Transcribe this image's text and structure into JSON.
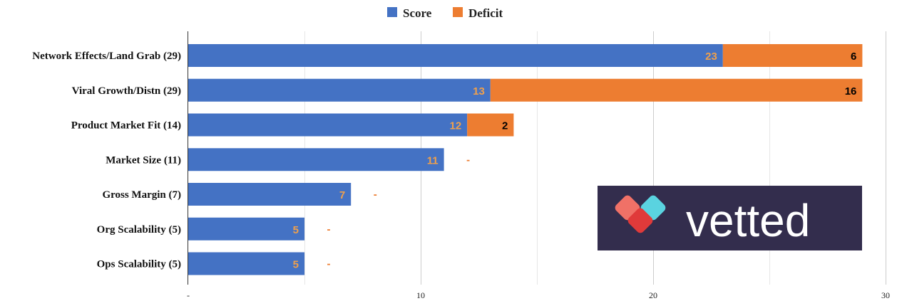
{
  "chart_data": {
    "type": "bar",
    "orientation": "horizontal",
    "stacked": true,
    "categories": [
      "Network Effects/Land Grab (29)",
      "Viral Growth/Distn (29)",
      "Product Market Fit (14)",
      "Market Size (11)",
      "Gross Margin (7)",
      "Org Scalability (5)",
      "Ops Scalability (5)"
    ],
    "series": [
      {
        "name": "Score",
        "color": "#4472c4",
        "values": [
          23,
          13,
          12,
          11,
          7,
          5,
          5
        ]
      },
      {
        "name": "Deficit",
        "color": "#ed7d31",
        "values": [
          6,
          16,
          2,
          0,
          0,
          0,
          0
        ]
      }
    ],
    "data_labels": {
      "Score": [
        "23",
        "13",
        "12",
        "11",
        "7",
        "5",
        "5"
      ],
      "Deficit": [
        "6",
        "16",
        "2",
        "-",
        "-",
        "-",
        "-"
      ]
    },
    "x_ticks": [
      "-",
      "10",
      "20",
      "30"
    ],
    "xlim": [
      0,
      30
    ],
    "grid": true,
    "legend_position": "top-center",
    "label_color_score": "#f0a04b",
    "label_color_deficit_inside": "#000000",
    "label_color_deficit_zero": "#ed7d31"
  },
  "logo": {
    "text": "vetted",
    "bg": "#332d4d",
    "icon": "heart-icon"
  }
}
